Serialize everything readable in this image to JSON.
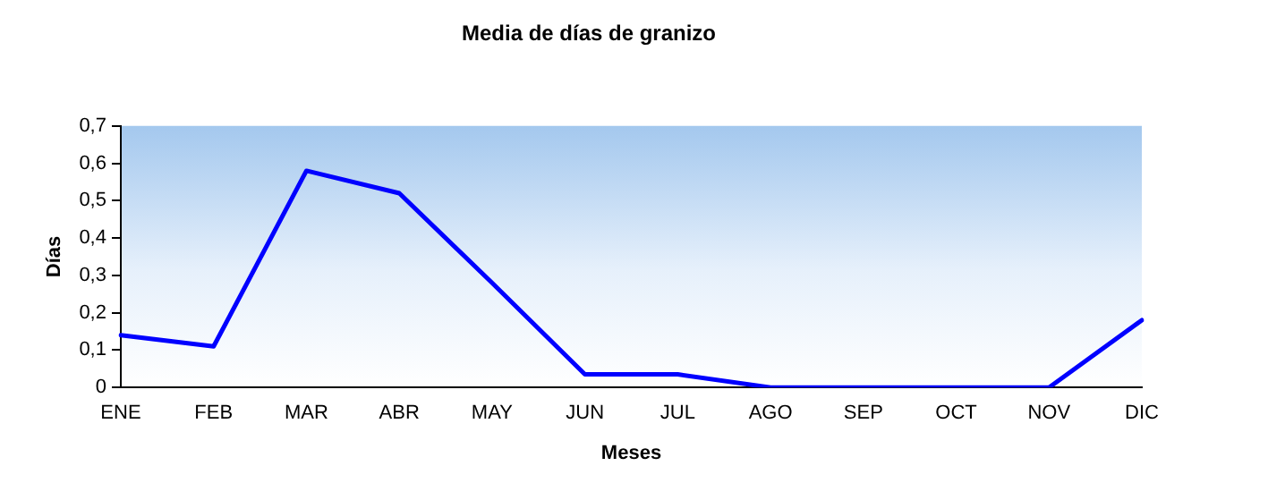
{
  "chart_data": {
    "type": "line",
    "title": "Media de días de granizo",
    "xlabel": "Meses",
    "ylabel": "Días",
    "categories": [
      "ENE",
      "FEB",
      "MAR",
      "ABR",
      "MAY",
      "JUN",
      "JUL",
      "AGO",
      "SEP",
      "OCT",
      "NOV",
      "DIC"
    ],
    "series": [
      {
        "color": "#0000ff",
        "values": [
          0.14,
          0.11,
          0.58,
          0.52,
          0.28,
          0.035,
          0.035,
          0,
          0,
          0,
          0,
          0.18
        ]
      }
    ],
    "ylim": [
      0,
      0.7
    ],
    "yticks": [
      {
        "value": 0,
        "label": "0"
      },
      {
        "value": 0.1,
        "label": "0,1"
      },
      {
        "value": 0.2,
        "label": "0,2"
      },
      {
        "value": 0.3,
        "label": "0,3"
      },
      {
        "value": 0.4,
        "label": "0,4"
      },
      {
        "value": 0.5,
        "label": "0,5"
      },
      {
        "value": 0.6,
        "label": "0,6"
      },
      {
        "value": 0.7,
        "label": "0,7"
      }
    ],
    "grid": false,
    "legend": false,
    "marker": "none",
    "line_style": "solid"
  }
}
